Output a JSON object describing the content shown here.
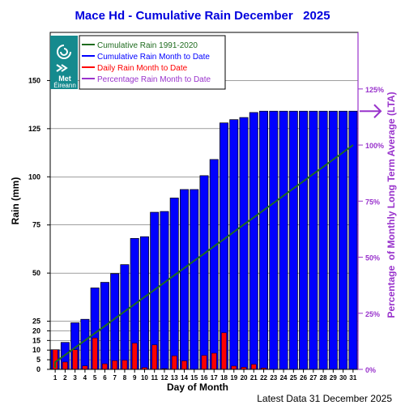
{
  "chart_data": {
    "type": "bar",
    "title": "Mace Hd - Cumulative Rain December   2025",
    "xlabel": "Day of Month",
    "ylabel": "Rain (mm)",
    "y2label": "Percentage  of Monthly Long Term Average (LTA)",
    "footer": "Latest Data 31 December 2025",
    "ylim": [
      0,
      175
    ],
    "y_ticks": [
      0,
      5,
      10,
      15,
      20,
      25,
      50,
      75,
      100,
      125,
      150
    ],
    "y2_ticks": [
      "0%",
      "25%",
      "50%",
      "75%",
      "100%",
      "125%"
    ],
    "y2_tick_values": [
      0,
      25,
      50,
      75,
      100,
      125
    ],
    "y2_full_scale_mm": 116.5,
    "lta_month_total_mm": 116.5,
    "legend_position": "top-left",
    "categories": [
      "1",
      "2",
      "3",
      "4",
      "5",
      "6",
      "7",
      "8",
      "9",
      "10",
      "11",
      "12",
      "13",
      "14",
      "15",
      "16",
      "17",
      "18",
      "19",
      "20",
      "21",
      "22",
      "23",
      "24",
      "25",
      "26",
      "27",
      "28",
      "29",
      "30",
      "31"
    ],
    "series": [
      {
        "name": "Cumulative Rain 1991-2020",
        "type": "line",
        "color": "#1e6b1e",
        "values": [
          3.8,
          7.5,
          11.3,
          15.0,
          18.8,
          22.5,
          26.3,
          30.1,
          33.8,
          37.6,
          41.3,
          45.1,
          48.9,
          52.6,
          56.4,
          60.1,
          63.9,
          67.6,
          71.4,
          75.2,
          78.9,
          82.7,
          86.4,
          90.2,
          94.0,
          97.7,
          101.5,
          105.2,
          109.0,
          112.7,
          116.5
        ]
      },
      {
        "name": "Cumulative Rain Month to Date",
        "type": "bar",
        "color": "#0000ff",
        "values": [
          10.2,
          14.0,
          24.2,
          26.0,
          42.3,
          45.2,
          49.7,
          54.4,
          68.0,
          68.9,
          81.6,
          82.0,
          89.0,
          93.4,
          93.4,
          100.6,
          109.0,
          128.0,
          129.7,
          130.8,
          133.4,
          134.1,
          134.1,
          134.1,
          134.1,
          134.1,
          134.1,
          134.1,
          134.1,
          134.1,
          134.1
        ]
      },
      {
        "name": "Daily Rain Month to Date",
        "type": "bar",
        "color": "#ff0000",
        "values": [
          10.2,
          3.8,
          10.2,
          1.8,
          16.3,
          2.9,
          4.5,
          4.7,
          13.6,
          0.9,
          12.7,
          0.4,
          7.0,
          4.4,
          0.0,
          7.2,
          8.4,
          19.0,
          1.7,
          1.1,
          2.6,
          0.7,
          0.0,
          0.0,
          0.0,
          0.0,
          0.0,
          0.0,
          0.0,
          0.0,
          0.0
        ]
      },
      {
        "name": "Percentage Rain Month to Date",
        "type": "marker",
        "color": "#9933cc",
        "value_percent": 115.1
      }
    ]
  },
  "colors": {
    "title": "#0000dd",
    "axis": "#000000",
    "pct_axis": "#9933cc",
    "grid": "#666666",
    "logo_bg": "#158a8e"
  },
  "logo": {
    "line1": "Met",
    "line2": "Éireann"
  }
}
